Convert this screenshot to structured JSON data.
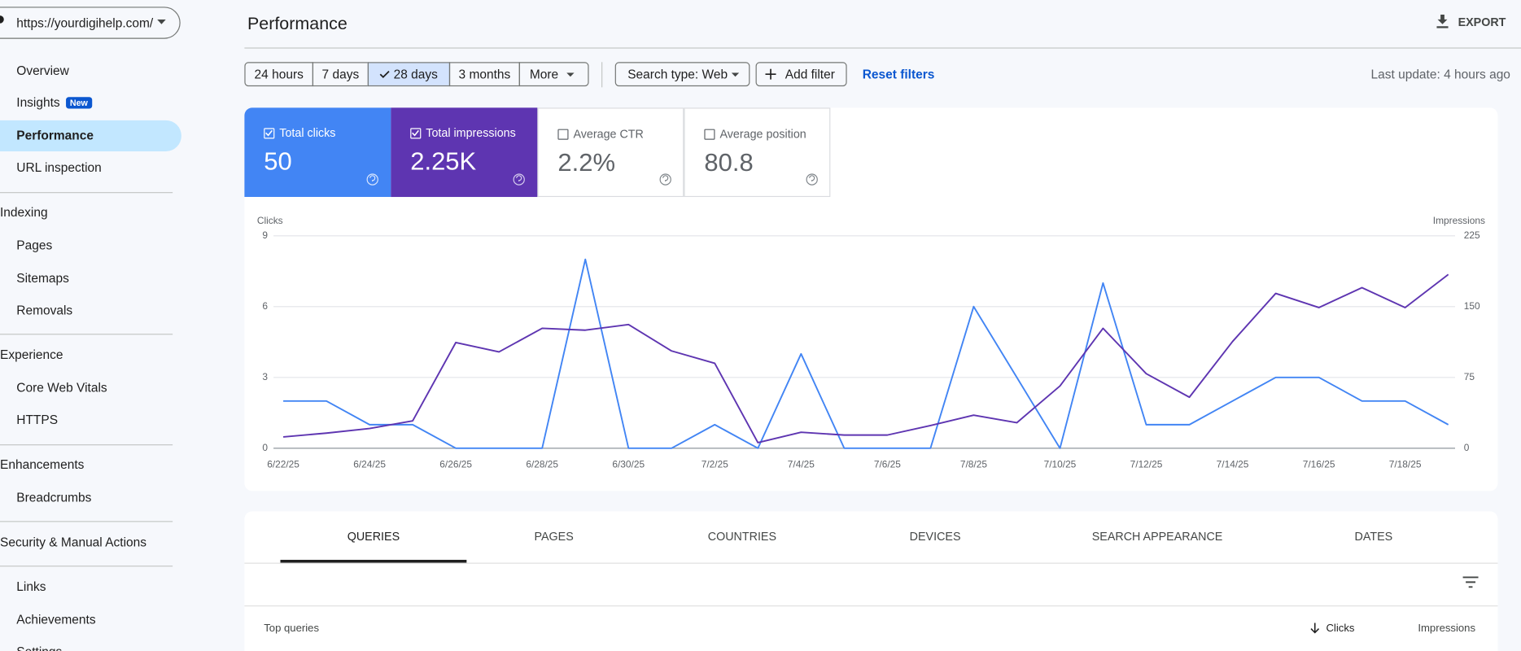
{
  "sidebar": {
    "property": "https://yourdigihelp.com/",
    "top": [
      "Overview",
      "Insights",
      "Performance",
      "URL inspection"
    ],
    "badge": "New",
    "indexing": {
      "title": "Indexing",
      "items": [
        "Pages",
        "Sitemaps",
        "Removals"
      ]
    },
    "experience": {
      "title": "Experience",
      "items": [
        "Core Web Vitals",
        "HTTPS"
      ]
    },
    "enhancements": {
      "title": "Enhancements",
      "items": [
        "Breadcrumbs"
      ]
    },
    "security": "Security & Manual Actions",
    "bottom": [
      "Links",
      "Achievements",
      "Settings"
    ]
  },
  "header": {
    "title": "Performance",
    "export": "EXPORT"
  },
  "toolbar": {
    "ranges": [
      "24 hours",
      "7 days",
      "28 days",
      "3 months",
      "More"
    ],
    "search_type": "Search type: Web",
    "add_filter": "Add filter",
    "reset": "Reset filters",
    "last_update": "Last update: 4 hours ago"
  },
  "metrics": [
    {
      "label": "Total clicks",
      "value": "50"
    },
    {
      "label": "Total impressions",
      "value": "2.25K"
    },
    {
      "label": "Average CTR",
      "value": "2.2%"
    },
    {
      "label": "Average position",
      "value": "80.8"
    }
  ],
  "chart_data": {
    "type": "line",
    "y_label": "Clicks",
    "y2_label": "Impressions",
    "categories": [
      "6/22/25",
      null,
      "6/24/25",
      null,
      "6/26/25",
      null,
      "6/28/25",
      null,
      "6/30/25",
      null,
      "7/2/25",
      null,
      "7/4/25",
      null,
      "7/6/25",
      null,
      "7/8/25",
      null,
      "7/10/25",
      null,
      "7/12/25",
      null,
      "7/14/25",
      null,
      "7/16/25",
      null,
      "7/18/25",
      null
    ],
    "series": [
      {
        "name": "Clicks",
        "color": "#4285f4",
        "values": [
          2,
          2,
          1,
          1,
          0,
          0,
          0,
          8,
          0,
          0,
          1,
          0,
          4,
          0,
          0,
          0,
          6,
          3,
          0,
          7,
          1,
          1,
          2,
          3,
          3,
          2,
          2,
          1
        ]
      },
      {
        "name": "Impressions",
        "color": "#5e35b1",
        "axis": "y2",
        "values": [
          12,
          16,
          21,
          29,
          112,
          102,
          127,
          125,
          131,
          103,
          90,
          6,
          17,
          14,
          14,
          24,
          35,
          27,
          66,
          127,
          79,
          54,
          113,
          164,
          149,
          170,
          149,
          184
        ]
      }
    ],
    "ylim": [
      0,
      9
    ],
    "yticks": [
      0,
      3,
      6,
      9
    ],
    "y2lim": [
      0,
      225
    ],
    "y2ticks": [
      0,
      75,
      150,
      225
    ],
    "grid": true
  },
  "tabs": [
    "QUERIES",
    "PAGES",
    "COUNTRIES",
    "DEVICES",
    "SEARCH APPEARANCE",
    "DATES"
  ],
  "table": {
    "title": "Top queries",
    "columns": [
      "Clicks",
      "Impressions"
    ]
  }
}
